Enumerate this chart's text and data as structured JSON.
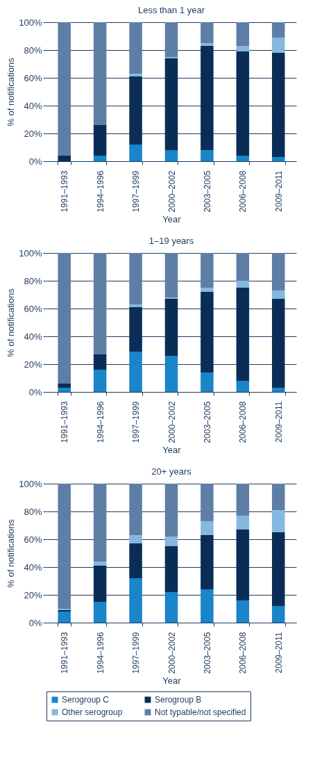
{
  "chart_data": [
    {
      "type": "bar",
      "stacked": true,
      "title": "Less than 1 year",
      "xlabel": "Year",
      "ylabel": "% of notifications",
      "categories": [
        "1991–1993",
        "1994–1996",
        "1997–1999",
        "2000–2002",
        "2003–2005",
        "2006–2008",
        "2009–2011"
      ],
      "ylim": [
        0,
        100
      ],
      "yticks": [
        {
          "value": 0,
          "label": "0%"
        },
        {
          "value": 20,
          "label": "20%"
        },
        {
          "value": 40,
          "label": "40%"
        },
        {
          "value": 60,
          "label": "60%"
        },
        {
          "value": 80,
          "label": "80%"
        },
        {
          "value": 100,
          "label": "100%"
        }
      ],
      "grid": "y",
      "legend": false,
      "series": [
        {
          "color": "#1a85c8",
          "values": [
            0,
            4,
            12,
            8,
            8,
            4,
            3
          ]
        },
        {
          "color": "#0a2d57",
          "values": [
            4,
            22,
            49,
            66,
            75,
            75,
            75
          ]
        },
        {
          "color": "#85b8e0",
          "values": [
            0,
            0,
            2,
            1,
            2,
            4,
            11
          ]
        },
        {
          "color": "#5f7ea6",
          "values": [
            96,
            74,
            37,
            25,
            15,
            17,
            11
          ]
        }
      ]
    },
    {
      "type": "bar",
      "stacked": true,
      "title": "1–19 years",
      "xlabel": "Year",
      "ylabel": "% of notifications",
      "categories": [
        "1991–1993",
        "1994–1996",
        "1997–1999",
        "2000–2002",
        "2003–2005",
        "2006–2008",
        "2009–2011"
      ],
      "ylim": [
        0,
        100
      ],
      "yticks": [
        {
          "value": 0,
          "label": "0%"
        },
        {
          "value": 20,
          "label": "20%"
        },
        {
          "value": 40,
          "label": "40%"
        },
        {
          "value": 60,
          "label": "60%"
        },
        {
          "value": 80,
          "label": "80%"
        },
        {
          "value": 100,
          "label": "100%"
        }
      ],
      "grid": "y",
      "legend": false,
      "series": [
        {
          "color": "#1a85c8",
          "values": [
            3,
            16,
            29,
            26,
            14,
            8,
            3
          ]
        },
        {
          "color": "#0a2d57",
          "values": [
            3,
            11,
            32,
            41,
            58,
            67,
            64
          ]
        },
        {
          "color": "#85b8e0",
          "values": [
            0,
            0,
            2,
            1,
            3,
            5,
            6
          ]
        },
        {
          "color": "#5f7ea6",
          "values": [
            94,
            73,
            37,
            32,
            25,
            20,
            27
          ]
        }
      ]
    },
    {
      "type": "bar",
      "stacked": true,
      "title": "20+ years",
      "xlabel": "Year",
      "ylabel": "% of notifications",
      "categories": [
        "1991–1993",
        "1994–1996",
        "1997–1999",
        "2000–2002",
        "2003–2005",
        "2006–2008",
        "2009–2011"
      ],
      "ylim": [
        0,
        100
      ],
      "yticks": [
        {
          "value": 0,
          "label": "0%"
        },
        {
          "value": 20,
          "label": "20%"
        },
        {
          "value": 40,
          "label": "40%"
        },
        {
          "value": 60,
          "label": "60%"
        },
        {
          "value": 80,
          "label": "80%"
        },
        {
          "value": 100,
          "label": "100%"
        }
      ],
      "grid": "y",
      "legend": "bottom",
      "series": [
        {
          "name": "Serogroup C",
          "color": "#1a85c8",
          "values": [
            8,
            15,
            32,
            22,
            24,
            16,
            12
          ]
        },
        {
          "name": "Serogroup B",
          "color": "#0a2d57",
          "values": [
            1,
            26,
            25,
            33,
            39,
            51,
            53
          ]
        },
        {
          "name": "Other serogroup",
          "color": "#85b8e0",
          "values": [
            1,
            3,
            6,
            7,
            10,
            10,
            16
          ]
        },
        {
          "name": "Not typable/not specified",
          "color": "#5f7ea6",
          "values": [
            90,
            56,
            37,
            38,
            27,
            23,
            19
          ]
        }
      ]
    }
  ]
}
